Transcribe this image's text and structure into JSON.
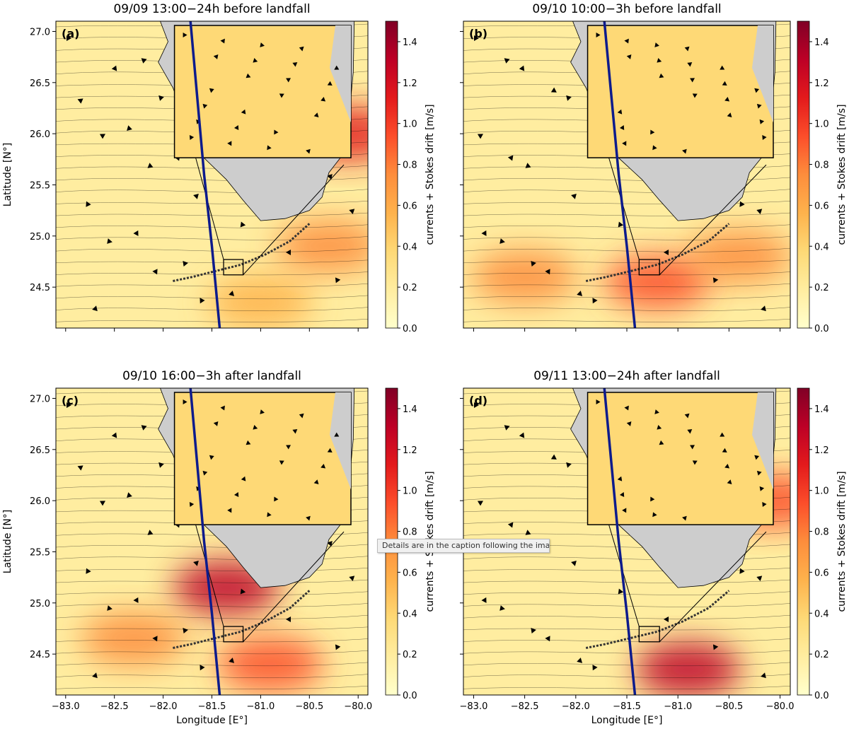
{
  "tooltip": {
    "text": "Details are in the caption following the image"
  },
  "colors": {
    "colormap": [
      "#ffffcc",
      "#ffeda0",
      "#fed976",
      "#feb24c",
      "#fd8d3c",
      "#fc4e2a",
      "#e31a1c",
      "#bd0026",
      "#800026"
    ],
    "land": "#cdcdcd",
    "track": "#0d1b8c",
    "streamline": "#000000"
  },
  "chart_data": [
    {
      "type": "heatmap",
      "panel": "(a)",
      "title": "09/09 13:00−24h before landfall",
      "xlabel": "",
      "ylabel": "Latitude [N°]",
      "xlim": [
        -83.1,
        -79.9
      ],
      "ylim": [
        24.1,
        27.1
      ],
      "xticks": [
        -83.0,
        -82.5,
        -82.0,
        -81.5,
        -81.0,
        -80.5,
        -80.0
      ],
      "xtick_labels": [],
      "yticks": [
        24.5,
        25.0,
        25.5,
        26.0,
        26.5,
        27.0
      ],
      "ytick_labels": [
        "24.5",
        "25.0",
        "25.5",
        "26.0",
        "26.5",
        "27.0"
      ],
      "colorbar": {
        "label": "currents + Stokes drift [m/s]",
        "range": [
          0.0,
          1.5
        ],
        "ticks": [
          "0.0",
          "0.2",
          "0.4",
          "0.6",
          "0.8",
          "1.0",
          "1.2",
          "1.4"
        ]
      },
      "hurricane_track": [
        [
          -81.72,
          27.1
        ],
        [
          -81.58,
          25.6
        ],
        [
          -81.5,
          24.9
        ],
        [
          -81.42,
          24.1
        ]
      ],
      "inset_box": {
        "lon": [
          -81.38,
          -81.18
        ],
        "lat": [
          24.62,
          24.77
        ]
      },
      "speed_hotspots": [
        {
          "lon": -80.1,
          "lat": 26.0,
          "value": 1.1
        },
        {
          "lon": -81.0,
          "lat": 24.35,
          "value": 0.65
        },
        {
          "lon": -80.3,
          "lat": 24.9,
          "value": 0.7
        }
      ]
    },
    {
      "type": "heatmap",
      "panel": "(b)",
      "title": "09/10 10:00−3h before landfall",
      "xlabel": "",
      "ylabel": "",
      "xlim": [
        -83.1,
        -79.9
      ],
      "ylim": [
        24.1,
        27.1
      ],
      "xticks": [
        -83.0,
        -82.5,
        -82.0,
        -81.5,
        -81.0,
        -80.5,
        -80.0
      ],
      "xtick_labels": [],
      "yticks": [
        24.5,
        25.0,
        25.5,
        26.0,
        26.5,
        27.0
      ],
      "ytick_labels": [],
      "colorbar": {
        "label": "currents + Stokes drift [m/s]",
        "range": [
          0.0,
          1.5
        ],
        "ticks": [
          "0.0",
          "0.2",
          "0.4",
          "0.6",
          "0.8",
          "1.0",
          "1.2",
          "1.4"
        ]
      },
      "hurricane_track": [
        [
          -81.72,
          27.1
        ],
        [
          -81.58,
          25.6
        ],
        [
          -81.5,
          24.9
        ],
        [
          -81.42,
          24.1
        ]
      ],
      "inset_box": {
        "lon": [
          -81.38,
          -81.18
        ],
        "lat": [
          24.62,
          24.77
        ]
      },
      "speed_hotspots": [
        {
          "lon": -81.2,
          "lat": 24.55,
          "value": 0.9
        },
        {
          "lon": -82.5,
          "lat": 24.6,
          "value": 0.7
        },
        {
          "lon": -80.4,
          "lat": 24.8,
          "value": 0.75
        }
      ]
    },
    {
      "type": "heatmap",
      "panel": "(c)",
      "title": "09/10 16:00−3h after landfall",
      "xlabel": "Longitude [E°]",
      "ylabel": "Latitude [N°]",
      "xlim": [
        -83.1,
        -79.9
      ],
      "ylim": [
        24.1,
        27.1
      ],
      "xticks": [
        -83.0,
        -82.5,
        -82.0,
        -81.5,
        -81.0,
        -80.5,
        -80.0
      ],
      "xtick_labels": [
        "−83.0",
        "−82.5",
        "−82.0",
        "−81.5",
        "−81.0",
        "−80.5",
        "−80.0"
      ],
      "yticks": [
        24.5,
        25.0,
        25.5,
        26.0,
        26.5,
        27.0
      ],
      "ytick_labels": [
        "24.5",
        "25.0",
        "25.5",
        "26.0",
        "26.5",
        "27.0"
      ],
      "colorbar": {
        "label": "currents + Stokes drift [m/s]",
        "range": [
          0.0,
          1.5
        ],
        "ticks": [
          "0.0",
          "0.2",
          "0.4",
          "0.6",
          "0.8",
          "1.0",
          "1.2",
          "1.4"
        ]
      },
      "hurricane_track": [
        [
          -81.72,
          27.1
        ],
        [
          -81.58,
          25.6
        ],
        [
          -81.5,
          24.9
        ],
        [
          -81.42,
          24.1
        ]
      ],
      "inset_box": {
        "lon": [
          -81.38,
          -81.18
        ],
        "lat": [
          24.62,
          24.77
        ]
      },
      "speed_hotspots": [
        {
          "lon": -81.35,
          "lat": 25.15,
          "value": 1.4
        },
        {
          "lon": -80.9,
          "lat": 24.4,
          "value": 0.85
        },
        {
          "lon": -82.3,
          "lat": 24.65,
          "value": 0.7
        }
      ]
    },
    {
      "type": "heatmap",
      "panel": "(d)",
      "title": "09/11 13:00−24h after landfall",
      "xlabel": "Longitude [E°]",
      "ylabel": "",
      "xlim": [
        -83.1,
        -79.9
      ],
      "ylim": [
        24.1,
        27.1
      ],
      "xticks": [
        -83.0,
        -82.5,
        -82.0,
        -81.5,
        -81.0,
        -80.5,
        -80.0
      ],
      "xtick_labels": [
        "−83.0",
        "−82.5",
        "−82.0",
        "−81.5",
        "−81.0",
        "−80.5",
        "−80.0"
      ],
      "yticks": [
        24.5,
        25.0,
        25.5,
        26.0,
        26.5,
        27.0
      ],
      "ytick_labels": [],
      "colorbar": {
        "label": "currents + Stokes drift [m/s]",
        "range": [
          0.0,
          1.5
        ],
        "ticks": [
          "0.0",
          "0.2",
          "0.4",
          "0.6",
          "0.8",
          "1.0",
          "1.2",
          "1.4"
        ]
      },
      "hurricane_track": [
        [
          -81.72,
          27.1
        ],
        [
          -81.58,
          25.6
        ],
        [
          -81.5,
          24.9
        ],
        [
          -81.42,
          24.1
        ]
      ],
      "inset_box": {
        "lon": [
          -81.38,
          -81.18
        ],
        "lat": [
          24.62,
          24.77
        ]
      },
      "speed_hotspots": [
        {
          "lon": -80.9,
          "lat": 24.35,
          "value": 1.3
        },
        {
          "lon": -80.05,
          "lat": 26.0,
          "value": 1.0
        }
      ]
    }
  ]
}
